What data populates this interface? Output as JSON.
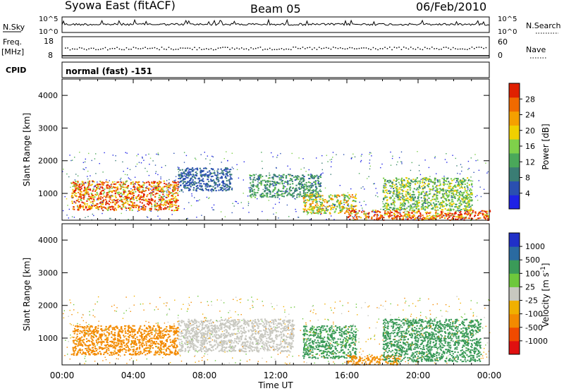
{
  "header": {
    "station": "Syowa East (fitACF)",
    "beam": "Beam 05",
    "date": "06/Feb/2010"
  },
  "strips": {
    "nsky_label": "N.Sky",
    "nsky_top": "10^5",
    "nsky_bottom": "10^0",
    "nsearch_label": "N.Search",
    "nsearch_top": "10^5",
    "nsearch_bottom": "10^0",
    "freq_label_1": "Freq.",
    "freq_label_2": "[MHz]",
    "freq_ticks": [
      "18",
      "8"
    ],
    "nave_label": "Nave",
    "nave_ticks": [
      "60",
      "0"
    ],
    "cpid_label": "CPID",
    "cpid_text": "normal (fast) -151"
  },
  "colors": {
    "power_scale": [
      "#1e22e6",
      "#2a4fb0",
      "#3a7d74",
      "#4aa85a",
      "#7fd04a",
      "#f0d000",
      "#f5a000",
      "#f06a00",
      "#e02000"
    ],
    "velocity_scale": [
      "#e01010",
      "#f04a00",
      "#f38a00",
      "#f0b000",
      "#c8c8c0",
      "#6ec83c",
      "#3a9a58",
      "#2a6aa0",
      "#2030c8"
    ]
  },
  "chart_data": [
    {
      "type": "heatmap",
      "title": "",
      "quantity": "Power",
      "ylabel": "Slant Range [km]",
      "yticks": [
        "1000",
        "2000",
        "3000",
        "4000"
      ],
      "ylim": [
        180,
        4500
      ],
      "colorbar_label": "Power [dB]",
      "colorbar_ticks": [
        "4",
        "8",
        "12",
        "16",
        "20",
        "24",
        "28"
      ],
      "colorbar_range": [
        0,
        30
      ],
      "regions": [
        {
          "x": [
            0.5,
            6.5
          ],
          "y": [
            500,
            1400
          ],
          "value": 24
        },
        {
          "x": [
            6.5,
            9.5
          ],
          "y": [
            1100,
            1800
          ],
          "value": 6
        },
        {
          "x": [
            10.5,
            14.5
          ],
          "y": [
            900,
            1600
          ],
          "value": 10
        },
        {
          "x": [
            13.5,
            16.5
          ],
          "y": [
            400,
            1000
          ],
          "value": 18
        },
        {
          "x": [
            16,
            24
          ],
          "y": [
            200,
            500
          ],
          "value": 26
        },
        {
          "x": [
            18,
            23
          ],
          "y": [
            500,
            1500
          ],
          "value": 14
        }
      ]
    },
    {
      "type": "heatmap",
      "title": "",
      "quantity": "Velocity",
      "ylabel": "Slant Range [km]",
      "yticks": [
        "1000",
        "2000",
        "3000",
        "4000"
      ],
      "ylim": [
        180,
        4500
      ],
      "xlabel": "Time UT",
      "xticks": [
        "00:00",
        "04:00",
        "08:00",
        "12:00",
        "16:00",
        "20:00",
        "00:00"
      ],
      "xlim": [
        0,
        24
      ],
      "colorbar_label": "Velocity [m s^-1]",
      "colorbar_ticks": [
        "-1000",
        "-500",
        "-100",
        "-25",
        "25",
        "100",
        "500",
        "1000"
      ],
      "regions": [
        {
          "x": [
            0.5,
            6.5
          ],
          "y": [
            500,
            1400
          ],
          "value": -300
        },
        {
          "x": [
            6.5,
            13
          ],
          "y": [
            600,
            1600
          ],
          "value": 0
        },
        {
          "x": [
            13.5,
            16.5
          ],
          "y": [
            400,
            1400
          ],
          "value": 150
        },
        {
          "x": [
            16,
            19
          ],
          "y": [
            200,
            500
          ],
          "value": -150
        },
        {
          "x": [
            18,
            23.5
          ],
          "y": [
            300,
            1600
          ],
          "value": 200
        }
      ]
    }
  ]
}
